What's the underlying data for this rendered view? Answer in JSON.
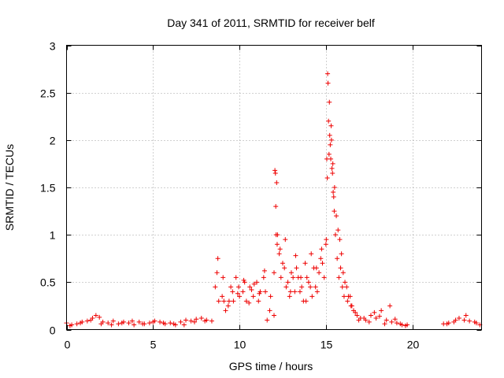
{
  "chart_data": {
    "type": "scatter",
    "title": "Day 341 of 2011, SRMTID for receiver belf",
    "xlabel": "GPS time / hours",
    "ylabel": "SRMTID / TECUs",
    "xlim": [
      0,
      24
    ],
    "ylim": [
      0,
      3
    ],
    "xticks": [
      0,
      5,
      10,
      15,
      20
    ],
    "xtick_labels": [
      "0",
      "5",
      "10",
      "15",
      "20"
    ],
    "yticks": [
      0,
      0.5,
      1,
      1.5,
      2,
      2.5,
      3
    ],
    "ytick_labels": [
      "0",
      "0.5",
      "1",
      "1.5",
      "2",
      "2.5",
      "3"
    ],
    "grid": true,
    "marker": "+",
    "series": [
      {
        "name": "SRMTID",
        "color": "#ee0000",
        "x": [
          0.0,
          0.3,
          0.6,
          0.9,
          1.2,
          1.5,
          1.7,
          1.9,
          2.1,
          2.4,
          2.7,
          3.0,
          3.3,
          3.6,
          3.9,
          4.2,
          4.5,
          4.8,
          5.1,
          5.4,
          5.7,
          6.0,
          6.3,
          6.6,
          6.9,
          7.2,
          7.5,
          7.8,
          8.1,
          8.4,
          8.6,
          8.8,
          9.0,
          9.2,
          9.4,
          9.6,
          9.8,
          10.0,
          10.2,
          10.4,
          10.6,
          10.8,
          11.0,
          11.2,
          11.4,
          11.6,
          11.8,
          12.0,
          12.1,
          12.2,
          12.4,
          12.6,
          12.8,
          13.0,
          13.2,
          13.4,
          13.6,
          13.8,
          14.0,
          14.2,
          14.4,
          14.6,
          14.8,
          15.0,
          15.05,
          15.1,
          15.2,
          15.3,
          15.4,
          15.5,
          15.6,
          15.8,
          16.0,
          16.2,
          16.4,
          16.6,
          16.8,
          17.0,
          17.3,
          17.6,
          17.9,
          18.2,
          18.5,
          18.8,
          19.1,
          19.4,
          19.7,
          21.8,
          22.1,
          22.4,
          22.7,
          23.0,
          23.3,
          23.6,
          23.9,
          0.2,
          0.8,
          1.4,
          2.0,
          2.6,
          3.2,
          3.8,
          4.4,
          5.0,
          5.6,
          6.2,
          6.8,
          7.4,
          8.0,
          8.7,
          9.1,
          9.5,
          9.9,
          10.3,
          10.7,
          11.1,
          11.5,
          12.05,
          12.15,
          12.3,
          12.5,
          12.7,
          12.9,
          13.1,
          13.3,
          13.5,
          13.7,
          13.9,
          14.1,
          14.3,
          14.5,
          14.7,
          14.9,
          15.15,
          15.25,
          15.35,
          15.45,
          15.7,
          15.9,
          16.1,
          16.3,
          16.5,
          16.7,
          16.9,
          17.2,
          17.5,
          17.8,
          18.1,
          18.4,
          18.7,
          19.0,
          19.3,
          19.6,
          22.0,
          22.5,
          23.1,
          23.7,
          8.75,
          9.05,
          9.35,
          9.65,
          9.95,
          10.25,
          10.55,
          10.85,
          11.15,
          11.45,
          11.75,
          12.0,
          12.35,
          12.65,
          12.95,
          13.25,
          13.55,
          13.85,
          14.15,
          14.45,
          14.75,
          15.02,
          15.08,
          15.12,
          15.18,
          15.22,
          15.28,
          15.32,
          15.38,
          15.42,
          15.48,
          15.55,
          15.65,
          15.75,
          15.85,
          15.95,
          16.05,
          16.25,
          16.45,
          12.08,
          12.12,
          12.18
        ],
        "y": [
          0.07,
          0.05,
          0.06,
          0.08,
          0.09,
          0.12,
          0.15,
          0.13,
          0.08,
          0.07,
          0.09,
          0.06,
          0.08,
          0.07,
          0.05,
          0.08,
          0.06,
          0.07,
          0.09,
          0.08,
          0.06,
          0.07,
          0.05,
          0.08,
          0.1,
          0.09,
          0.11,
          0.12,
          0.1,
          0.09,
          0.45,
          0.3,
          0.35,
          0.2,
          0.3,
          0.4,
          0.55,
          0.35,
          0.4,
          0.3,
          0.45,
          0.35,
          0.5,
          0.4,
          0.55,
          0.1,
          0.35,
          0.6,
          1.3,
          1.0,
          0.55,
          0.65,
          0.5,
          0.6,
          0.4,
          0.55,
          0.45,
          0.7,
          0.5,
          0.35,
          0.45,
          0.6,
          0.7,
          0.9,
          1.8,
          2.7,
          2.4,
          2.15,
          1.75,
          1.5,
          1.2,
          0.95,
          0.6,
          0.45,
          0.35,
          0.2,
          0.15,
          0.12,
          0.1,
          0.15,
          0.12,
          0.2,
          0.1,
          0.08,
          0.07,
          0.05,
          0.05,
          0.06,
          0.07,
          0.08,
          0.12,
          0.1,
          0.09,
          0.08,
          0.05,
          0.04,
          0.07,
          0.1,
          0.06,
          0.05,
          0.07,
          0.09,
          0.06,
          0.08,
          0.07,
          0.06,
          0.05,
          0.08,
          0.09,
          0.6,
          0.3,
          0.45,
          0.38,
          0.5,
          0.42,
          0.3,
          0.4,
          1.68,
          1.55,
          0.8,
          0.7,
          0.45,
          0.35,
          0.55,
          0.65,
          0.4,
          0.3,
          0.55,
          0.45,
          0.65,
          0.4,
          0.75,
          0.55,
          2.2,
          1.95,
          1.7,
          1.4,
          1.05,
          0.8,
          0.5,
          0.35,
          0.25,
          0.18,
          0.1,
          0.12,
          0.08,
          0.18,
          0.14,
          0.06,
          0.25,
          0.11,
          0.06,
          0.04,
          0.06,
          0.1,
          0.15,
          0.07,
          0.75,
          0.55,
          0.25,
          0.3,
          0.45,
          0.52,
          0.28,
          0.48,
          0.38,
          0.62,
          0.2,
          0.15,
          0.85,
          0.95,
          0.4,
          0.78,
          0.55,
          0.3,
          0.8,
          0.65,
          0.85,
          0.95,
          1.6,
          2.6,
          1.85,
          2.05,
          1.8,
          2.0,
          1.65,
          1.45,
          1.25,
          1.0,
          0.75,
          0.55,
          0.65,
          0.45,
          0.35,
          0.3,
          0.25,
          1.65,
          1.0,
          0.9
        ]
      }
    ]
  }
}
